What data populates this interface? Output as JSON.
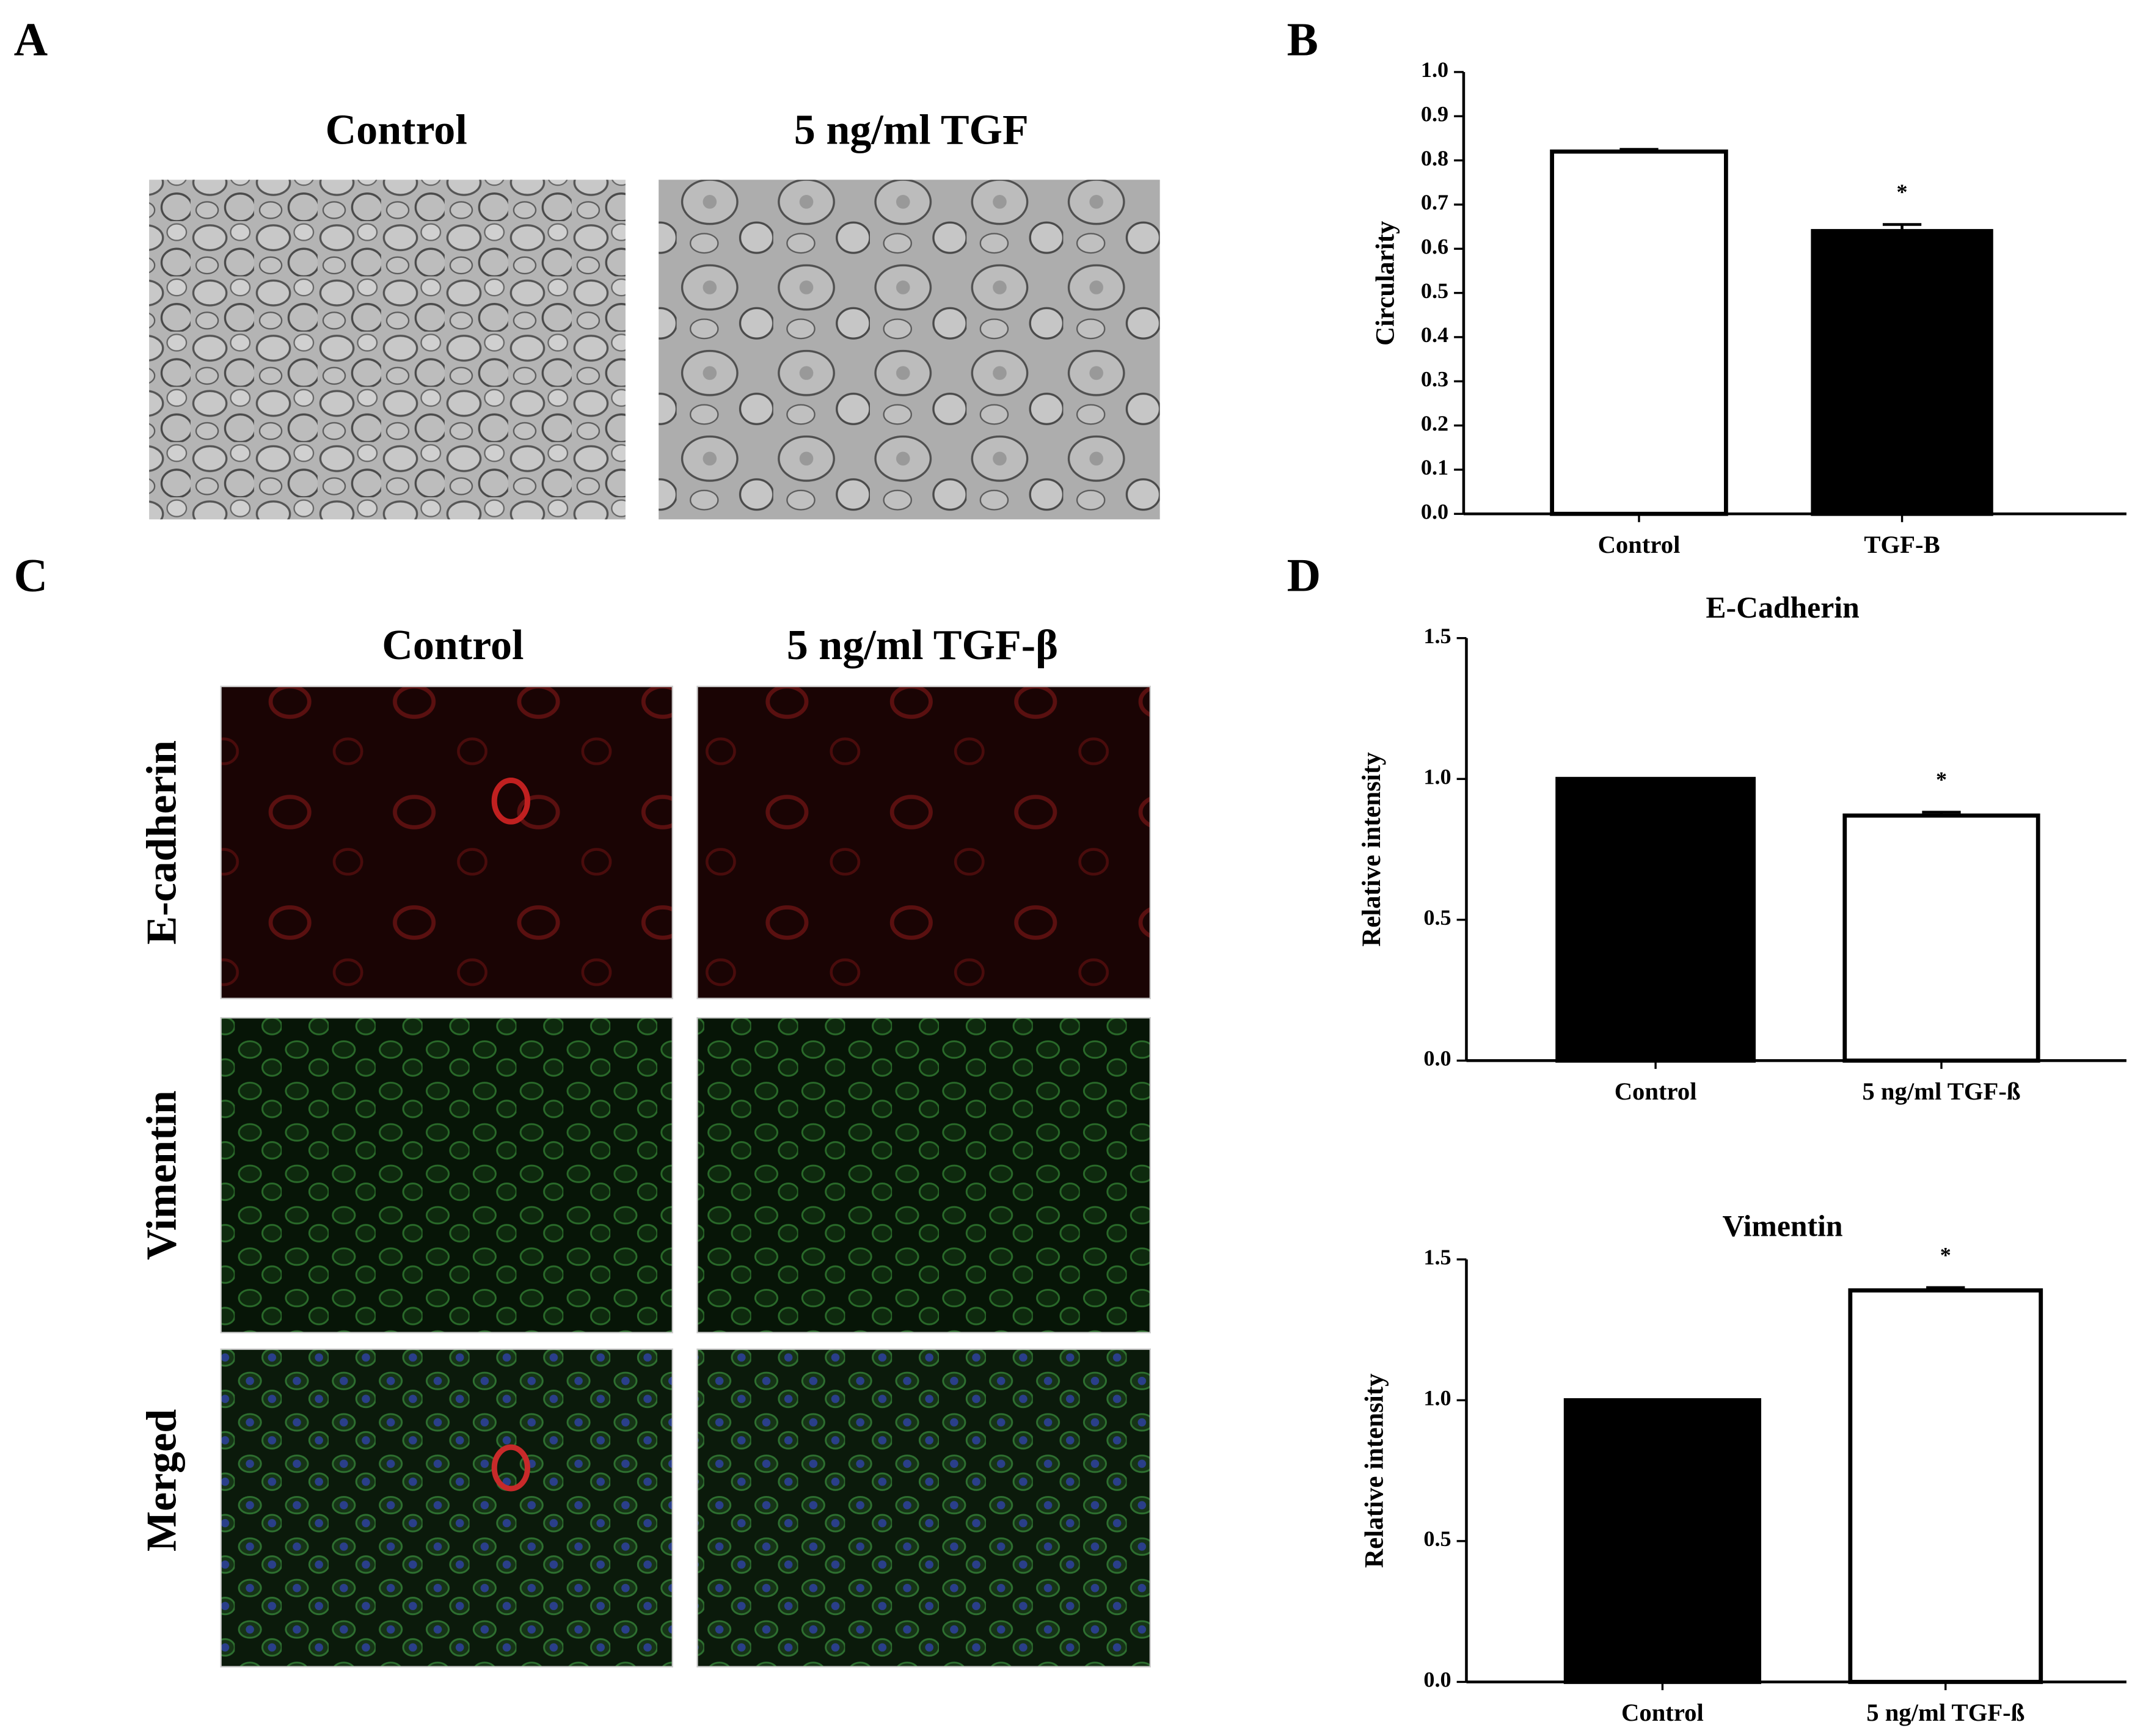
{
  "panels": {
    "A": {
      "letter": "A",
      "labels": [
        "Control",
        "5 ng/ml TGF"
      ]
    },
    "B": {
      "letter": "B"
    },
    "C": {
      "letter": "C",
      "columns": [
        "Control",
        "5 ng/ml TGF-β"
      ],
      "rows": [
        "E-cadherin",
        "Vimentin",
        "Merged"
      ]
    },
    "D": {
      "letter": "D"
    }
  },
  "chart_data": [
    {
      "type": "bar",
      "ylabel": "Circularity",
      "categories": [
        "Control",
        "TGF-B"
      ],
      "values": [
        0.82,
        0.64
      ],
      "errors": [
        0.005,
        0.015
      ],
      "colors": [
        "#ffffff",
        "#000000"
      ],
      "significance": [
        null,
        "*"
      ],
      "ylim": [
        0,
        1.0
      ],
      "yticks": [
        {
          "value": 0,
          "label": "0.0"
        },
        0.1,
        0.2,
        0.3,
        0.4,
        0.5,
        0.6,
        0.7,
        0.8,
        0.9,
        {
          "value": 1.0,
          "label": "1.0"
        }
      ]
    },
    {
      "type": "bar",
      "title": "E-Cadherin",
      "ylabel": "Relative intensity",
      "categories": [
        "Control",
        "5 ng/ml TGF-ß"
      ],
      "values": [
        1.0,
        0.87
      ],
      "errors": [
        0,
        0.012
      ],
      "colors": [
        "#000000",
        "#ffffff"
      ],
      "significance": [
        null,
        "*"
      ],
      "ylim": [
        0,
        1.5
      ],
      "yticks": [
        {
          "value": 0,
          "label": "0.0"
        },
        0.5,
        {
          "value": 1.0,
          "label": "1.0"
        },
        1.5
      ]
    },
    {
      "type": "bar",
      "title": "Vimentin",
      "ylabel": "Relative intensity",
      "categories": [
        "Control",
        "5 ng/ml TGF-ß"
      ],
      "values": [
        1.0,
        1.39
      ],
      "errors": [
        0,
        0.01
      ],
      "colors": [
        "#000000",
        "#ffffff"
      ],
      "significance": [
        null,
        "*"
      ],
      "ylim": [
        0,
        1.5
      ],
      "yticks": [
        {
          "value": 0,
          "label": "0.0"
        },
        0.5,
        {
          "value": 1.0,
          "label": "1.0"
        },
        1.5
      ]
    }
  ]
}
